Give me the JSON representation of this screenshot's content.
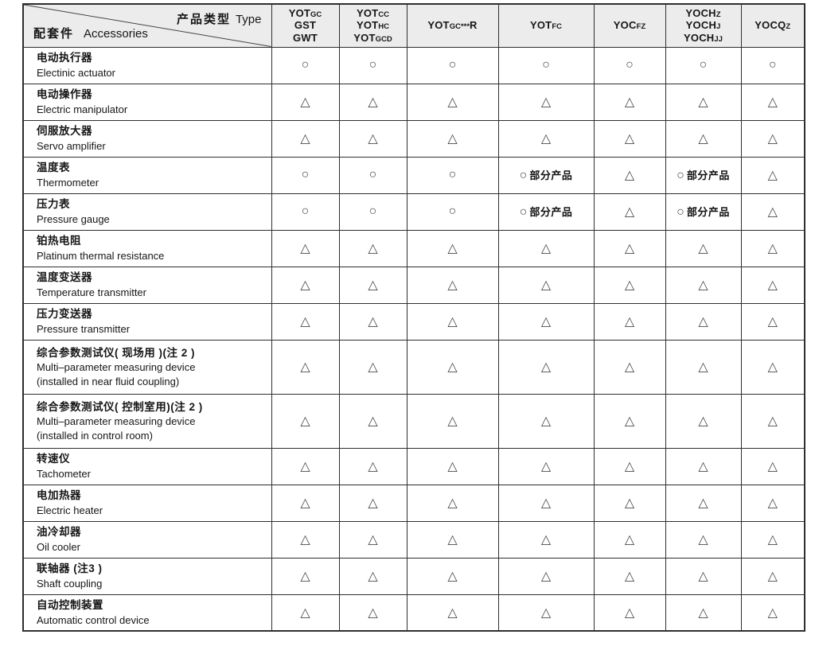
{
  "header_corner": {
    "top_label_zh": "产品类型",
    "top_label_en": "Type",
    "bottom_label_zh": "配套件",
    "bottom_label_en": "Accessories"
  },
  "table": {
    "colors": {
      "border": "#2e2e2e",
      "header_bg": "#ececec",
      "symbol": "#4a4a4a"
    },
    "symbols": {
      "circle": "○",
      "triangle": "△",
      "partial_label": "部分产品"
    },
    "columns": [
      {
        "id": "yotgc-gst-gwt",
        "lines": [
          [
            {
              "t": "YOT"
            },
            {
              "t": "GC",
              "s": 1
            }
          ],
          [
            {
              "t": "GST"
            }
          ],
          [
            {
              "t": "GWT"
            }
          ]
        ]
      },
      {
        "id": "yotcc-yothc-yotgcd",
        "lines": [
          [
            {
              "t": "YOT"
            },
            {
              "t": "CC",
              "s": 1
            }
          ],
          [
            {
              "t": "YOT"
            },
            {
              "t": "HC",
              "s": 1
            }
          ],
          [
            {
              "t": "YOT"
            },
            {
              "t": "GCD",
              "s": 1
            }
          ]
        ]
      },
      {
        "id": "yotgc-r",
        "lines": [
          [
            {
              "t": "YOT"
            },
            {
              "t": "GC",
              "s": 1
            },
            {
              "t": "***",
              "s": 1
            },
            {
              "t": "R"
            }
          ]
        ]
      },
      {
        "id": "yotfc",
        "lines": [
          [
            {
              "t": "YOT"
            },
            {
              "t": "FC",
              "s": 1
            }
          ]
        ]
      },
      {
        "id": "yocfz",
        "lines": [
          [
            {
              "t": "YOC"
            },
            {
              "t": "FZ",
              "s": 1
            }
          ]
        ]
      },
      {
        "id": "yochz-yochj-yochjj",
        "lines": [
          [
            {
              "t": "YOCH"
            },
            {
              "t": "Z",
              "s": 1
            }
          ],
          [
            {
              "t": "YOCH"
            },
            {
              "t": "J",
              "s": 1
            }
          ],
          [
            {
              "t": "YOCH"
            },
            {
              "t": "JJ",
              "s": 1
            }
          ]
        ]
      },
      {
        "id": "yocqz",
        "lines": [
          [
            {
              "t": "YOCQ"
            },
            {
              "t": "Z",
              "s": 1
            }
          ]
        ]
      }
    ],
    "rows": [
      {
        "zh": "电动执行器",
        "en": [
          "Electinic actuator"
        ],
        "cells": [
          "circle",
          "circle",
          "circle",
          "circle",
          "circle",
          "circle",
          "circle"
        ]
      },
      {
        "zh": "电动操作器",
        "en": [
          "Electric manipulator"
        ],
        "cells": [
          "triangle",
          "triangle",
          "triangle",
          "triangle",
          "triangle",
          "triangle",
          "triangle"
        ]
      },
      {
        "zh": "伺服放大器",
        "en": [
          "Servo amplifier"
        ],
        "cells": [
          "triangle",
          "triangle",
          "triangle",
          "triangle",
          "triangle",
          "triangle",
          "triangle"
        ]
      },
      {
        "zh": "温度表",
        "en": [
          "Thermometer"
        ],
        "cells": [
          "circle",
          "circle",
          "circle",
          "circle-partial",
          "triangle",
          "circle-partial",
          "triangle"
        ]
      },
      {
        "zh": "压力表",
        "en": [
          "Pressure gauge"
        ],
        "cells": [
          "circle",
          "circle",
          "circle",
          "circle-partial",
          "triangle",
          "circle-partial",
          "triangle"
        ]
      },
      {
        "zh": "铂热电阻",
        "en": [
          "Platinum thermal resistance"
        ],
        "cells": [
          "triangle",
          "triangle",
          "triangle",
          "triangle",
          "triangle",
          "triangle",
          "triangle"
        ]
      },
      {
        "zh": "温度变送器",
        "en": [
          "Temperature transmitter"
        ],
        "cells": [
          "triangle",
          "triangle",
          "triangle",
          "triangle",
          "triangle",
          "triangle",
          "triangle"
        ]
      },
      {
        "zh": "压力变送器",
        "en": [
          "Pressure transmitter"
        ],
        "cells": [
          "triangle",
          "triangle",
          "triangle",
          "triangle",
          "triangle",
          "triangle",
          "triangle"
        ]
      },
      {
        "zh": "综合参数测试仪( 现场用 )(注 2 )",
        "en": [
          "Multi–parameter measuring device",
          "(installed in near fluid coupling)"
        ],
        "cells": [
          "triangle",
          "triangle",
          "triangle",
          "triangle",
          "triangle",
          "triangle",
          "triangle"
        ]
      },
      {
        "zh": "综合参数测试仪( 控制室用)(注 2 )",
        "en": [
          "Multi–parameter measuring device",
          "(installed in control room)"
        ],
        "cells": [
          "triangle",
          "triangle",
          "triangle",
          "triangle",
          "triangle",
          "triangle",
          "triangle"
        ]
      },
      {
        "zh": "转速仪",
        "en": [
          "Tachometer"
        ],
        "cells": [
          "triangle",
          "triangle",
          "triangle",
          "triangle",
          "triangle",
          "triangle",
          "triangle"
        ]
      },
      {
        "zh": "电加热器",
        "en": [
          "Electric heater"
        ],
        "cells": [
          "triangle",
          "triangle",
          "triangle",
          "triangle",
          "triangle",
          "triangle",
          "triangle"
        ]
      },
      {
        "zh": "油冷却器",
        "en": [
          "Oil cooler"
        ],
        "cells": [
          "triangle",
          "triangle",
          "triangle",
          "triangle",
          "triangle",
          "triangle",
          "triangle"
        ]
      },
      {
        "zh": "联轴器 (注3 )",
        "en": [
          "Shaft coupling"
        ],
        "cells": [
          "triangle",
          "triangle",
          "triangle",
          "triangle",
          "triangle",
          "triangle",
          "triangle"
        ]
      },
      {
        "zh": "自动控制装置",
        "en": [
          "Automatic control device"
        ],
        "cells": [
          "triangle",
          "triangle",
          "triangle",
          "triangle",
          "triangle",
          "triangle",
          "triangle"
        ]
      }
    ]
  }
}
